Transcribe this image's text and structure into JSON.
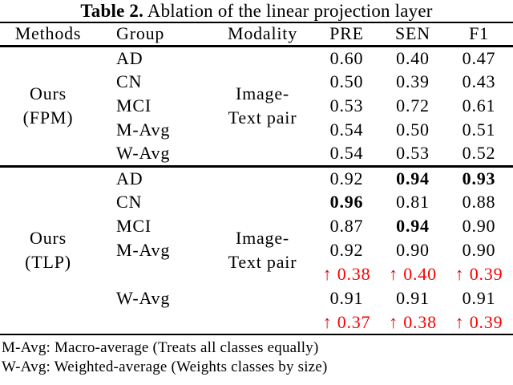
{
  "title": {
    "bold": "Table 2.",
    "rest": " Ablation of the linear projection layer"
  },
  "columns": {
    "methods": "Methods",
    "group": "Group",
    "modality": "Modality",
    "pre": "PRE",
    "sen": "SEN",
    "f1": "F1"
  },
  "sections": [
    {
      "method_line1": "Ours",
      "method_line2": "(FPM)",
      "modality_line1": "Image-",
      "modality_line2": "Text pair",
      "rows": [
        {
          "group": "AD",
          "pre": "0.60",
          "sen": "0.40",
          "f1": "0.47"
        },
        {
          "group": "CN",
          "pre": "0.50",
          "sen": "0.39",
          "f1": "0.43"
        },
        {
          "group": "MCI",
          "pre": "0.53",
          "sen": "0.72",
          "f1": "0.61"
        },
        {
          "group": "M-Avg",
          "pre": "0.54",
          "sen": "0.50",
          "f1": "0.51"
        },
        {
          "group": "W-Avg",
          "pre": "0.54",
          "sen": "0.53",
          "f1": "0.52"
        }
      ]
    },
    {
      "method_line1": "Ours",
      "method_line2": "(TLP)",
      "modality_line1": "Image-",
      "modality_line2": "Text pair",
      "rows": [
        {
          "group": "AD",
          "pre": "0.92",
          "sen": "0.94",
          "f1": "0.93"
        },
        {
          "group": "CN",
          "pre": "0.96",
          "sen": "0.81",
          "f1": "0.88"
        },
        {
          "group": "MCI",
          "pre": "0.87",
          "sen": "0.94",
          "f1": "0.90"
        },
        {
          "group": "M-Avg",
          "pre": "0.92",
          "sen": "0.90",
          "f1": "0.90"
        },
        {
          "group": "",
          "pre": "↑ 0.38",
          "sen": "↑ 0.40",
          "f1": "↑ 0.39"
        },
        {
          "group": "W-Avg",
          "pre": "0.91",
          "sen": "0.91",
          "f1": "0.91"
        },
        {
          "group": "",
          "pre": "↑ 0.37",
          "sen": "↑ 0.38",
          "f1": "↑ 0.39"
        }
      ]
    }
  ],
  "notes": [
    "M-Avg: Macro-average (Treats all classes equally)",
    "W-Avg: Weighted-average (Weights classes by size)"
  ],
  "colors": {
    "improvement_red": "#fa0000",
    "text": "#000000",
    "rule": "#000000"
  }
}
